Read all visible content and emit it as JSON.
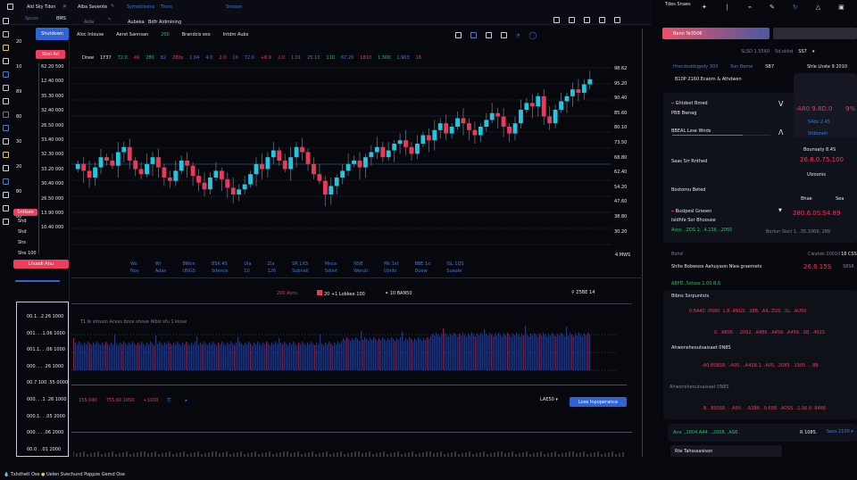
{
  "topbar": {
    "tabs": [
      "Ald Sky Tdon",
      "Alba Savente",
      "Symobissms",
      "Tions",
      "Snoosn"
    ],
    "sub": [
      "Spcos",
      "BMS"
    ],
    "toolbar": [
      "Alda",
      "Aubeka",
      "Bdfr Aidmining"
    ],
    "right_icons": [
      "grid-icon",
      "list-icon",
      "layout-icon",
      "settings-icon",
      "window-icon"
    ]
  },
  "sidebar": {
    "icons": [
      "chart-icon",
      "bell-icon",
      "star-icon",
      "layers-icon",
      "grid-icon",
      "calendar-icon",
      "clock-icon",
      "folder-icon",
      "flag-icon",
      "book-icon",
      "bolt-icon",
      "user-icon",
      "shield-icon",
      "gear-icon",
      "globe-icon",
      "help-icon"
    ],
    "labels": [
      "20",
      "10",
      "89",
      "80",
      "30",
      "20",
      "80",
      "80"
    ]
  },
  "left": {
    "shutdown_label": "Shutdown",
    "red_top_label": "Shel Ad",
    "red_mid_label": "Sntlsee",
    "red_bottom_label": "Lhuodi Anu",
    "price_ticks": [
      "62.20 500",
      "12.40 000",
      "35.30 000",
      "32.40 000",
      "26.50 000",
      "33.40 000",
      "32.30 000",
      "33.20 000",
      "30.40 000",
      "26.50 000",
      "13.90 000",
      "10.40 000"
    ],
    "mini": [
      "Shd",
      "Shd",
      "Shs",
      "She 100"
    ]
  },
  "chart": {
    "toolbar": [
      "Aloc Inlouse",
      "Aerst Sannsan",
      "200",
      "Brandcis eso",
      "Intdm Aubs"
    ],
    "ohlc_strip": [
      "Draw",
      "1Y37",
      "72.0",
      "49",
      "280",
      "82",
      "280s",
      "1.04",
      "4.0",
      "2.0",
      "10",
      "72.0",
      "+8.9",
      "2.0",
      "1.01",
      "25.10",
      "110",
      "67.20",
      "1810",
      "1.300",
      "1.903",
      "16"
    ],
    "colors": {
      "up": "#1fc7e0",
      "down": "#f0375a",
      "grid": "#1f2330"
    },
    "closes": [
      48,
      44,
      40,
      46,
      52,
      50,
      47,
      55,
      58,
      50,
      45,
      42,
      48,
      52,
      46,
      40,
      38,
      44,
      50,
      47,
      41,
      37,
      33,
      40,
      44,
      39,
      34,
      30,
      33,
      36,
      42,
      48,
      45,
      52,
      56,
      50,
      45,
      52,
      58,
      55,
      48,
      42,
      38,
      30,
      35,
      40,
      44,
      48,
      50,
      46,
      52,
      55,
      58,
      52,
      56,
      60,
      62,
      58,
      54,
      60,
      65,
      62,
      68,
      72,
      66,
      70,
      75,
      72,
      68,
      65,
      70,
      74,
      78,
      76,
      70,
      66,
      72,
      80,
      84,
      82,
      88,
      76,
      72,
      80,
      85,
      88,
      92,
      90,
      95,
      98
    ],
    "right_axis": [
      "98.62",
      "95.20",
      "90.40",
      "85.60",
      "80.10",
      "73.50",
      "68.80",
      "62.40",
      "54.20",
      "47.60",
      "38.80",
      "30.20"
    ],
    "time_labels": [
      [
        "Wo",
        "Nov"
      ],
      [
        "Wr",
        "Adan"
      ],
      [
        "BWon",
        "UNGS"
      ],
      [
        "BSK 4S",
        "Sdence"
      ],
      [
        "Ula",
        "10"
      ],
      [
        "Zla",
        "126"
      ],
      [
        "SR 1XS",
        "Subnell"
      ],
      [
        "Mnca",
        "Sdont"
      ],
      [
        "NSB",
        "Weruli"
      ],
      [
        "Mk 1st",
        "Ubnlo"
      ],
      [
        "BBE 1o",
        "Duew"
      ],
      [
        "ISL 1QS",
        "Sueale"
      ]
    ],
    "axis_badge": "4.MWS"
  },
  "lower": {
    "legend": [
      "200 Avns",
      "20 +1 Lobkee 100",
      "10 BAN50"
    ],
    "legend_right": "Z5BE 14",
    "note": "T1 Ik shtuon Acess boce shove Wblz sfu 1 klose",
    "axis": [
      "00.1. .2.26 1000",
      "001. . .1.06 1000",
      "001.1. . .06 1000",
      "000. . . .26 1000",
      "00.7 100 .55 0000",
      "000. . .1 .26 1000",
      "000.1. . .05 2000",
      "000. . . .06 2000",
      "00.0 . .01 2000"
    ],
    "stats": [
      "155.040",
      "755.60 1050",
      "+1100"
    ],
    "dropdown": "LAE50",
    "action_button": "Lose Inpoperance"
  },
  "statusbar": {
    "items": [
      "Txlsthetl Ose",
      "Uelen Svechund Poppze Gemd Ose"
    ]
  },
  "right_panel": {
    "top_icons": [
      "Tdes Snaes",
      "palette-icon",
      "pin-icon",
      "link-icon",
      "pen-icon",
      "refresh-icon",
      "warning-icon",
      "image-icon",
      "doc-icon",
      "phone-icon"
    ],
    "order_tab": "Bann Te3506",
    "summary": [
      "SLSD 1.5560",
      "Sd.okhd",
      "SS7"
    ],
    "links": [
      "Hrecdoddsgedy 303",
      "Ssn Beme",
      "SB7"
    ],
    "status_line": "B10P 2160 Ecaom & Athdwen",
    "rows": [
      {
        "label": "Ghtdest Bmed",
        "sub": "PBB Bwnag",
        "price": "-A80 9.8D.0",
        "pct": "9%"
      },
      {
        "label": "BBEAL Lsse Wnds",
        "progress": 0.72
      },
      {
        "label": "Saas Srr Rnthed",
        "price": "26.8.0.75.100"
      },
      {
        "label": "Bostomu Beted"
      },
      {
        "label": "Buslpesl Greoen",
        "sub": "Isldhfe Sor Bhoouse",
        "price": "280.6.0S.S4.89",
        "green": "Asos. ,ZOS 1, .4.156. ,2065"
      },
      {
        "label": "Bohd",
        "price": "26.6 15S",
        "extra": "Shlte Bobwoss Aahuyaon Nlea graemets",
        "green": "A8PD ,Sstsos 1.0S B.6"
      }
    ],
    "right_mini": [
      "Shle Lhste 9 2010",
      "S4ds 2.45",
      "Sltboneh",
      "Bounsaty 8.4S",
      "Ulzoonis",
      "Bhae",
      "Sea",
      "Borlun Siscl 1, .35.1069, 289",
      "Cwatdo 20010",
      "18 CSS",
      "S8S6"
    ],
    "sections": [
      "Blbns Sxrpuntsts",
      "Ahwonsheoutsaisaet 0N8S"
    ],
    "number_rows": [
      "0.8A40..0N90. 1.8..4NGS. .28B. .AA..ZOS. .SL. .AU50",
      "0. .A806. . .2062. .A4B6. .A4S6. .A456. .SB. .401S",
      "-A0.8SBSB. ..A0S. ..A4SB.1. .A0S. .2085. .1905. . .8B",
      "B. .8S0S8. . .A00. . .A3B6. .0.608. .AOSS. .1.S6.0. 8466"
    ],
    "footer": {
      "green": "Ane .,2004.A44. .,2008. ,ASB.",
      "value": "R 1085.",
      "select": "Sass 2100"
    },
    "input_placeholder": "Rte Tahsssasison"
  }
}
